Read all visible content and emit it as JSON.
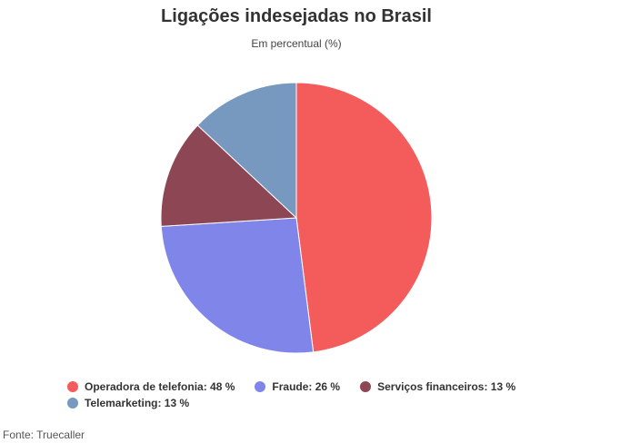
{
  "header": {
    "title": "Ligações indesejadas no Brasil",
    "subtitle": "Em percentual (%)"
  },
  "footer": {
    "source": "Fonte: Truecaller"
  },
  "chart_data": {
    "type": "pie",
    "title": "Ligações indesejadas no Brasil",
    "subtitle": "Em percentual (%)",
    "unit": "%",
    "legend_position": "bottom",
    "slices": [
      {
        "label": "Operadora de telefonia",
        "value": 48,
        "color": "#f45b5b",
        "legend_text": "Operadora de telefonia: 48 %"
      },
      {
        "label": "Fraude",
        "value": 26,
        "color": "#8085e9",
        "legend_text": "Fraude: 26 %"
      },
      {
        "label": "Serviços financeiros",
        "value": 13,
        "color": "#8d4654",
        "legend_text": "Serviços financeiros: 13 %"
      },
      {
        "label": "Telemarketing",
        "value": 13,
        "color": "#7798bf",
        "legend_text": "Telemarketing: 13 %"
      }
    ]
  }
}
